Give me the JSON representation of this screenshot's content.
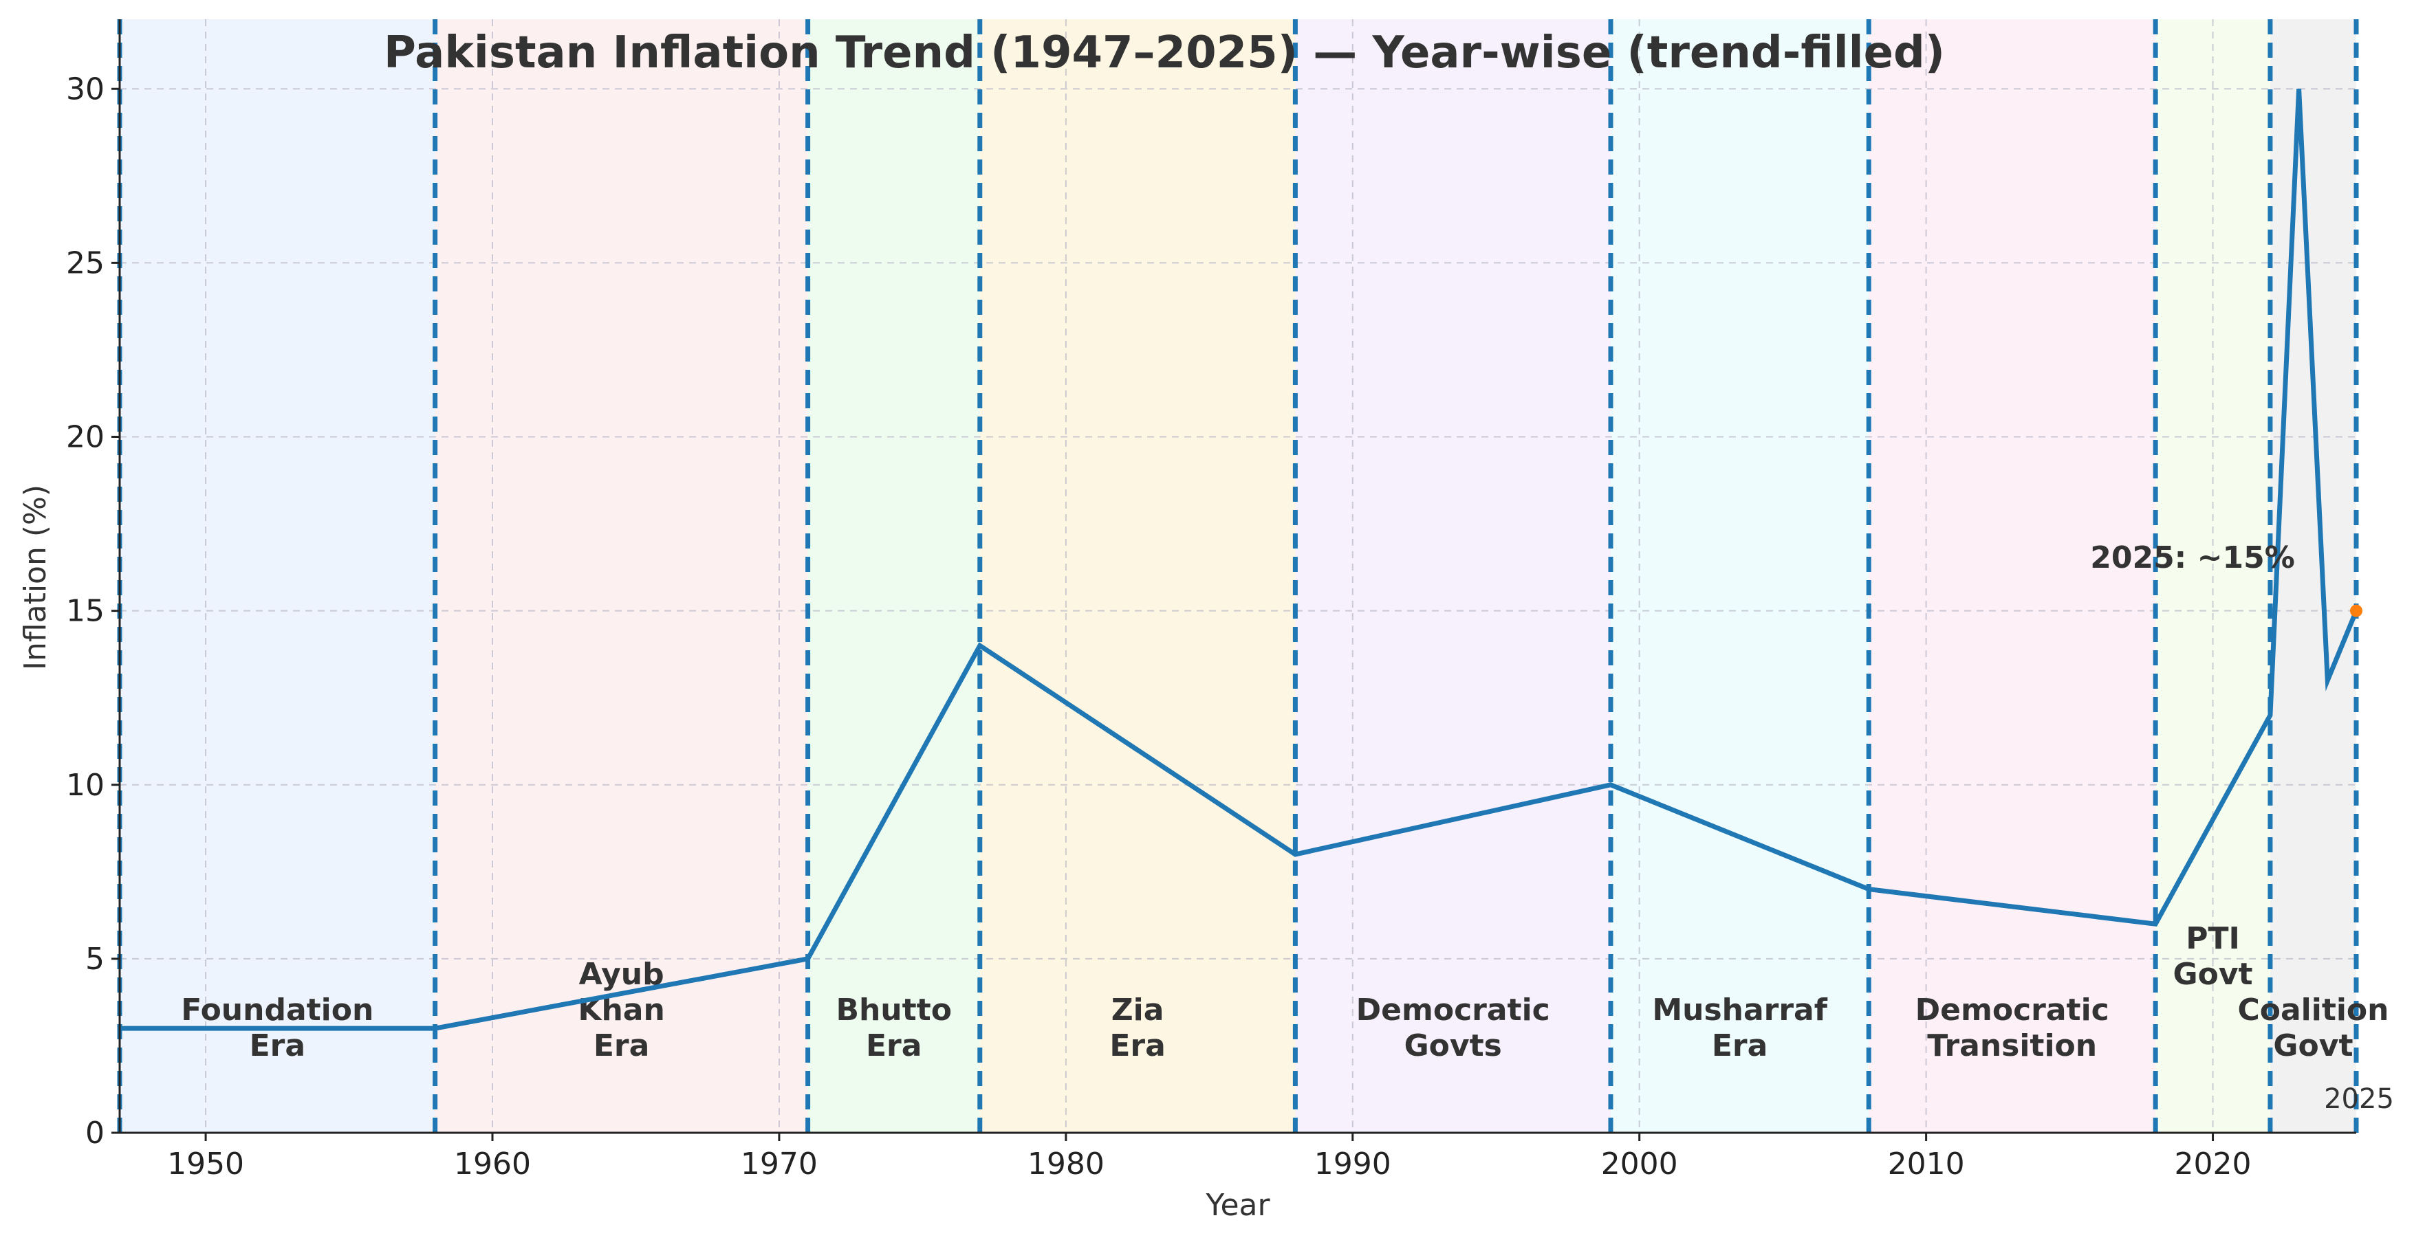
{
  "chart_data": {
    "type": "line",
    "title": "Pakistan Inflation Trend (1947–2025) — Year-wise (trend-filled)",
    "xlabel": "Year",
    "ylabel": "Inflation (%)",
    "xlim": [
      1947,
      2025
    ],
    "ylim": [
      0,
      32
    ],
    "xticks": [
      1950,
      1960,
      1970,
      1980,
      1990,
      2000,
      2010,
      2020
    ],
    "yticks": [
      0,
      5,
      10,
      15,
      20,
      25,
      30
    ],
    "grid": true,
    "series": [
      {
        "color": "#1f77b4",
        "x": [
          1947,
          1958,
          1971,
          1977,
          1988,
          1999,
          2008,
          2018,
          2022,
          2023,
          2024,
          2025
        ],
        "y": [
          3,
          3,
          5,
          14,
          8,
          10,
          7,
          6,
          12,
          30,
          13,
          15
        ]
      }
    ],
    "boundaries": [
      1947,
      1958,
      1971,
      1977,
      1988,
      1999,
      2008,
      2018,
      2022,
      2025
    ],
    "eras": [
      {
        "label": [
          "Foundation",
          "Era"
        ],
        "start": 1947,
        "end": 1958,
        "color": "#eef4fd"
      },
      {
        "label": [
          "Ayub",
          "Khan",
          "Era"
        ],
        "start": 1958,
        "end": 1971,
        "color": "#fdf0f1"
      },
      {
        "label": [
          "Bhutto",
          "Era"
        ],
        "start": 1971,
        "end": 1977,
        "color": "#eefcf0"
      },
      {
        "label": [
          "Zia",
          "Era"
        ],
        "start": 1977,
        "end": 1988,
        "color": "#fdf6e2"
      },
      {
        "label": [
          "Democratic",
          "Govts"
        ],
        "start": 1988,
        "end": 1999,
        "color": "#f6f1fd"
      },
      {
        "label": [
          "Musharraf",
          "Era"
        ],
        "start": 1999,
        "end": 2008,
        "color": "#eefcfd"
      },
      {
        "label": [
          "Democratic",
          "Transition"
        ],
        "start": 2008,
        "end": 2018,
        "color": "#fdf0f6"
      },
      {
        "label": [
          "PTI",
          "Govt"
        ],
        "start": 2018,
        "end": 2022,
        "color": "#f6fdee"
      },
      {
        "label": [
          "Coalition",
          "Govt"
        ],
        "start": 2022,
        "end": 2025,
        "color": "#f1f1f1"
      }
    ],
    "annotation": {
      "text": "2025: ~15%",
      "x": 2025,
      "y": 15,
      "marker_color": "#ff7f0e"
    },
    "corner_label": "2025"
  }
}
